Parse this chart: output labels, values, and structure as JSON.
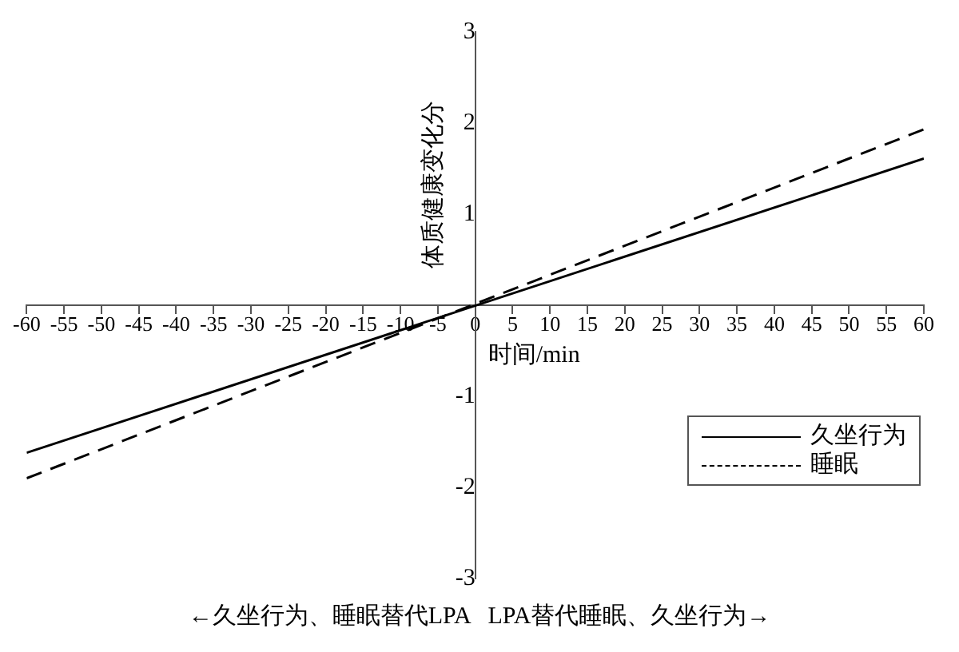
{
  "chart_data": {
    "type": "line",
    "xlabel": "时间/min",
    "ylabel": "体质健康变化分",
    "x": [
      -60,
      60
    ],
    "series": [
      {
        "name": "久坐行为",
        "color": "#000000",
        "line_style": "solid",
        "values": [
          -1.62,
          1.61
        ]
      },
      {
        "name": "睡眠",
        "color": "#000000",
        "line_style": "dashed",
        "values": [
          -1.9,
          1.93
        ]
      }
    ],
    "xlim": [
      -60,
      60
    ],
    "xticks": [
      -60,
      -55,
      -50,
      -45,
      -40,
      -35,
      -30,
      -25,
      -20,
      -15,
      -10,
      -5,
      0,
      5,
      10,
      15,
      20,
      25,
      30,
      35,
      40,
      45,
      50,
      55,
      60
    ],
    "ylim": [
      -3,
      3
    ],
    "yticks": [
      -3,
      -2,
      -1,
      1,
      2,
      3
    ],
    "grid": false,
    "legend": "right",
    "marker": "none",
    "annotations": [
      "←久坐行为、睡眠替代LPA   LPA替代睡眠、久坐行为→"
    ]
  }
}
